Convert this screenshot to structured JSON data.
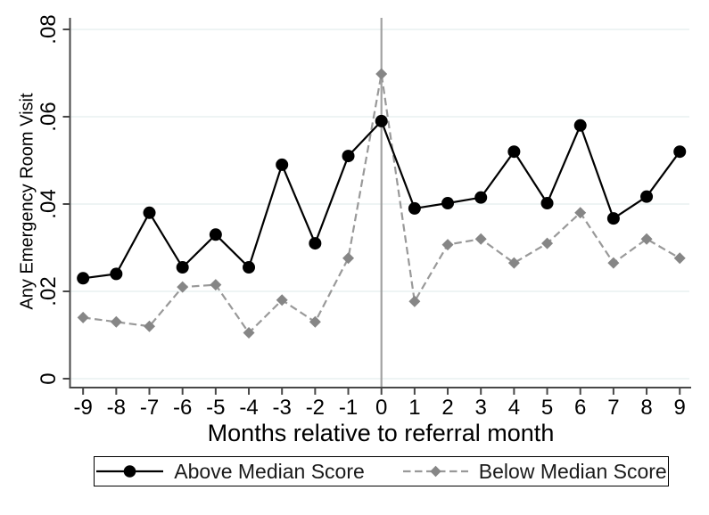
{
  "chart_data": {
    "type": "line",
    "title": "",
    "xlabel": "Months relative to referral month",
    "ylabel": "Any Emergency Room Visit",
    "x": [
      -9,
      -8,
      -7,
      -6,
      -5,
      -4,
      -3,
      -2,
      -1,
      0,
      1,
      2,
      3,
      4,
      5,
      6,
      7,
      8,
      9
    ],
    "xtick_labels": [
      "-9",
      "-8",
      "-7",
      "-6",
      "-5",
      "-4",
      "-3",
      "-2",
      "-1",
      "0",
      "1",
      "2",
      "3",
      "4",
      "5",
      "6",
      "7",
      "8",
      "9"
    ],
    "yticks": [
      0,
      0.02,
      0.04,
      0.06,
      0.08
    ],
    "ytick_labels": [
      "0",
      ".02",
      ".04",
      ".06",
      ".08"
    ],
    "ylim": [
      0,
      0.082
    ],
    "grid": true,
    "reference_line_x": 0,
    "legend_position": "bottom",
    "series": [
      {
        "name": "Above Median Score",
        "marker": "circle",
        "line_style": "solid",
        "line_color": "#000000",
        "marker_color": "#000000",
        "values": [
          0.023,
          0.024,
          0.038,
          0.0255,
          0.033,
          0.0255,
          0.049,
          0.031,
          0.051,
          0.059,
          0.039,
          0.0402,
          0.0415,
          0.052,
          0.0402,
          0.058,
          0.0367,
          0.0417,
          0.052
        ]
      },
      {
        "name": "Below Median Score",
        "marker": "diamond",
        "line_style": "dashed",
        "line_color": "#999999",
        "marker_color": "#868686",
        "values": [
          0.014,
          0.013,
          0.012,
          0.021,
          0.0215,
          0.0105,
          0.018,
          0.013,
          0.0276,
          0.0698,
          0.0177,
          0.0307,
          0.032,
          0.0265,
          0.031,
          0.038,
          0.0265,
          0.032,
          0.0276
        ]
      }
    ]
  },
  "colors": {
    "background": "#ffffff",
    "gridline": "#e8f0f1",
    "axis": "#474747",
    "reference_line": "#a2a2a2",
    "legend_border": "#000000"
  }
}
